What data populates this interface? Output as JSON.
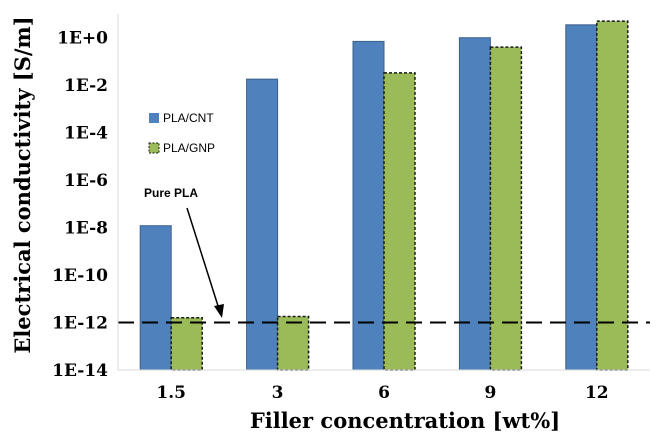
{
  "chart_data": {
    "type": "bar",
    "log_scale_y": true,
    "categories": [
      "1.5",
      "3",
      "6",
      "9",
      "12"
    ],
    "series": [
      {
        "name": "PLA/CNT",
        "color": "#4F81BD",
        "border": "#3A5F8A",
        "border_style": "solid",
        "values": [
          1.2e-08,
          0.018,
          0.7,
          1.0,
          3.5
        ]
      },
      {
        "name": "PLA/GNP",
        "color": "#9BBB59",
        "border": "#1A1A1A",
        "border_style": "dashed",
        "values": [
          1.6e-12,
          1.8e-12,
          0.033,
          0.4,
          5.0
        ]
      }
    ],
    "reference_line": {
      "value": 1e-12,
      "label": "Pure PLA",
      "style": "dashed",
      "color": "#000000"
    },
    "ylim": [
      1e-14,
      10
    ],
    "y_ticks": [
      {
        "value": 1e-14,
        "label": "1E-14"
      },
      {
        "value": 1e-12,
        "label": "1E-12"
      },
      {
        "value": 1e-10,
        "label": "1E-10"
      },
      {
        "value": 1e-08,
        "label": "1E-8"
      },
      {
        "value": 1e-06,
        "label": "1E-6"
      },
      {
        "value": 0.0001,
        "label": "1E-4"
      },
      {
        "value": 0.01,
        "label": "1E-2"
      },
      {
        "value": 1,
        "label": "1E+0"
      }
    ],
    "xlabel": "Filler concentration [wt%]",
    "ylabel": "Electrical conductivity  [S/m]",
    "title": "",
    "legend_position": "left",
    "grid": false
  }
}
